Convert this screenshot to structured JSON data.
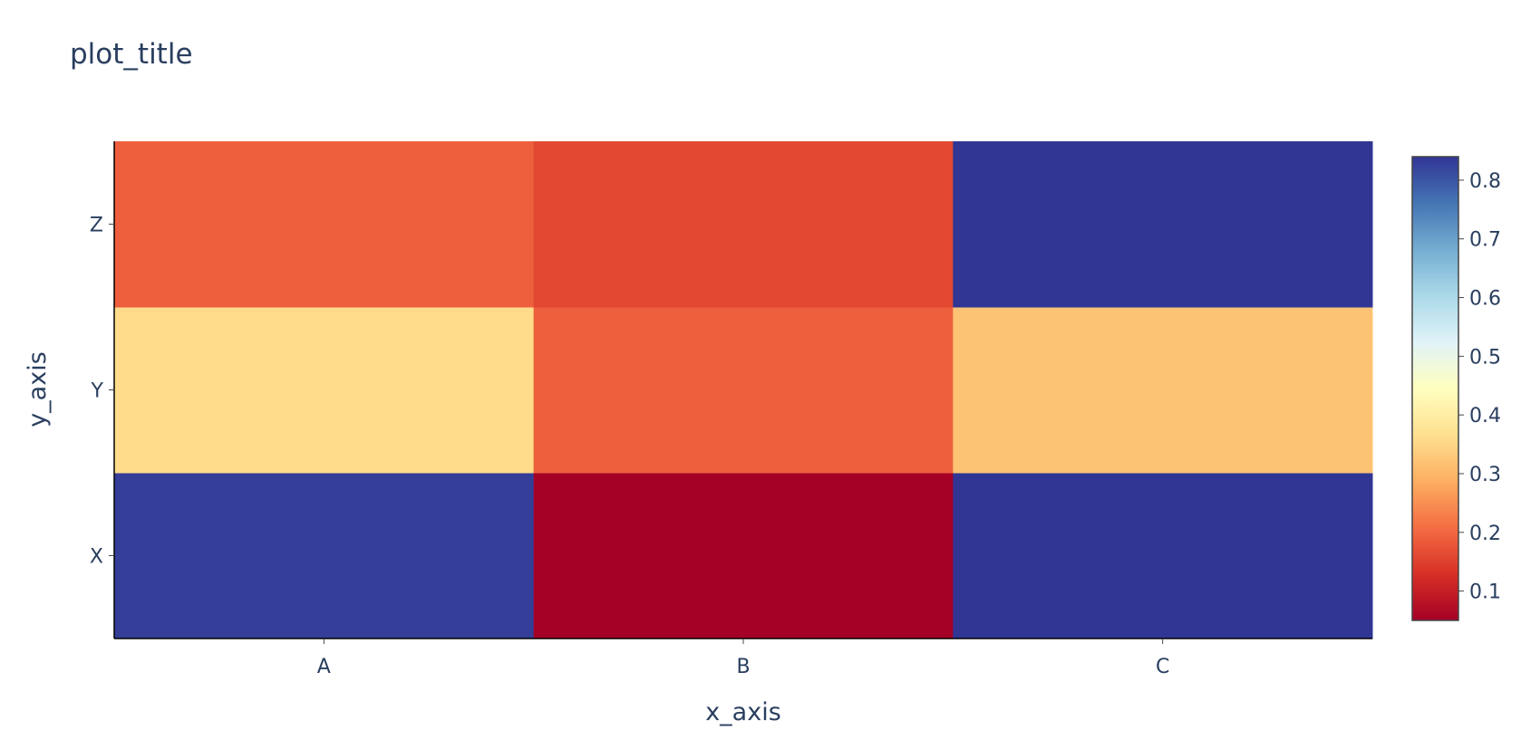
{
  "chart_data": {
    "type": "heatmap",
    "title": "plot_title",
    "xlabel": "x_axis",
    "ylabel": "y_axis",
    "x": [
      "A",
      "B",
      "C"
    ],
    "y": [
      "X",
      "Y",
      "Z"
    ],
    "z": [
      [
        0.83,
        0.05,
        0.84
      ],
      [
        0.36,
        0.19,
        0.32
      ],
      [
        0.19,
        0.16,
        0.84
      ]
    ],
    "zmin": 0.05,
    "zmax": 0.84,
    "colorscale": "RdYlBu",
    "colorscale_stops": [
      "#a50026",
      "#d73027",
      "#f46d43",
      "#fdae61",
      "#fee090",
      "#ffffbf",
      "#e0f3f8",
      "#abd9e9",
      "#74add1",
      "#4575b4",
      "#313695"
    ],
    "colorbar_ticks": [
      0.1,
      0.2,
      0.3,
      0.4,
      0.5,
      0.6,
      0.7,
      0.8
    ],
    "colorbar_tick_labels": [
      "0.1",
      "0.2",
      "0.3",
      "0.4",
      "0.5",
      "0.6",
      "0.7",
      "0.8"
    ]
  }
}
